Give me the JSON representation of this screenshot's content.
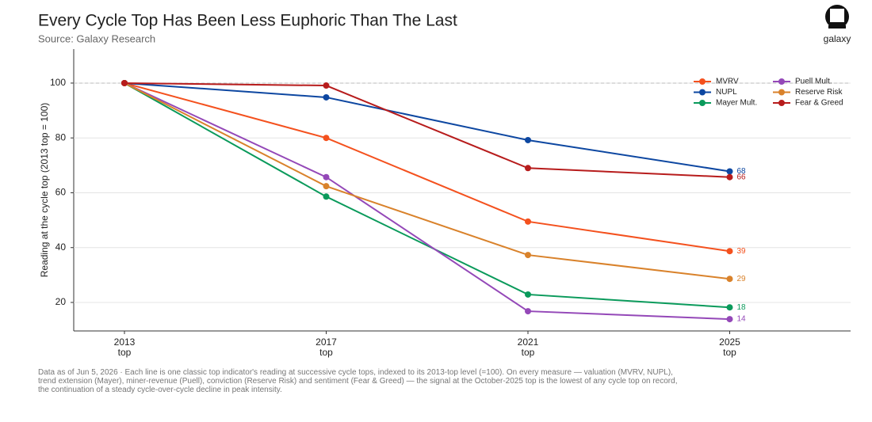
{
  "chart_data": {
    "type": "line",
    "title": "Every Cycle Top Has Been Less Euphoric Than The Last",
    "subtitle": "Source: Galaxy Research",
    "logo": "galaxy",
    "y_label": "Reading at the cycle top (2013 top = 100)",
    "categories": [
      "2013\ntop",
      "2017\ntop",
      "2021\ntop",
      "2025\ntop"
    ],
    "ylim": [
      9.6,
      112.4
    ],
    "yticks": [
      20,
      40,
      60,
      80,
      100
    ],
    "grid": true,
    "reference_line": 100,
    "series": [
      {
        "name": "MVRV",
        "color": "#f4511e",
        "values": [
          100,
          80,
          49.5,
          38.7
        ],
        "value_labels": [
          null,
          null,
          null,
          "39"
        ]
      },
      {
        "name": "NUPL",
        "color": "#0d47a1",
        "values": [
          100,
          94.8,
          79.2,
          67.8
        ],
        "value_labels": [
          null,
          null,
          null,
          "68"
        ]
      },
      {
        "name": "Mayer Mult.",
        "color": "#0a9a5b",
        "values": [
          100,
          58.6,
          22.9,
          18.2
        ],
        "value_labels": [
          null,
          null,
          null,
          "18"
        ]
      },
      {
        "name": "Puell Mult.",
        "color": "#9448b8",
        "values": [
          100,
          65.7,
          16.8,
          13.9
        ],
        "value_labels": [
          null,
          null,
          null,
          "14"
        ]
      },
      {
        "name": "Reserve Risk",
        "color": "#d9822b",
        "values": [
          100,
          62.4,
          37.3,
          28.6
        ],
        "value_labels": [
          null,
          null,
          null,
          "29"
        ]
      },
      {
        "name": "Fear & Greed",
        "color": "#b71c1c",
        "values": [
          100,
          99.1,
          69.0,
          65.7
        ],
        "value_labels": [
          null,
          null,
          null,
          "66"
        ]
      }
    ],
    "note": [
      "Data as of Jun 5, 2026 · Each line is one classic top indicator's reading at successive cycle tops, indexed to its 2013-top level (=100). On every measure — valuation (MVRV, NUPL),",
      "trend extension (Mayer), miner-revenue (Puell), conviction (Reserve Risk) and sentiment (Fear & Greed) — the signal at the October-2025 top is the lowest of any cycle top on record,",
      "the continuation of a steady cycle-over-cycle decline in peak intensity."
    ]
  }
}
